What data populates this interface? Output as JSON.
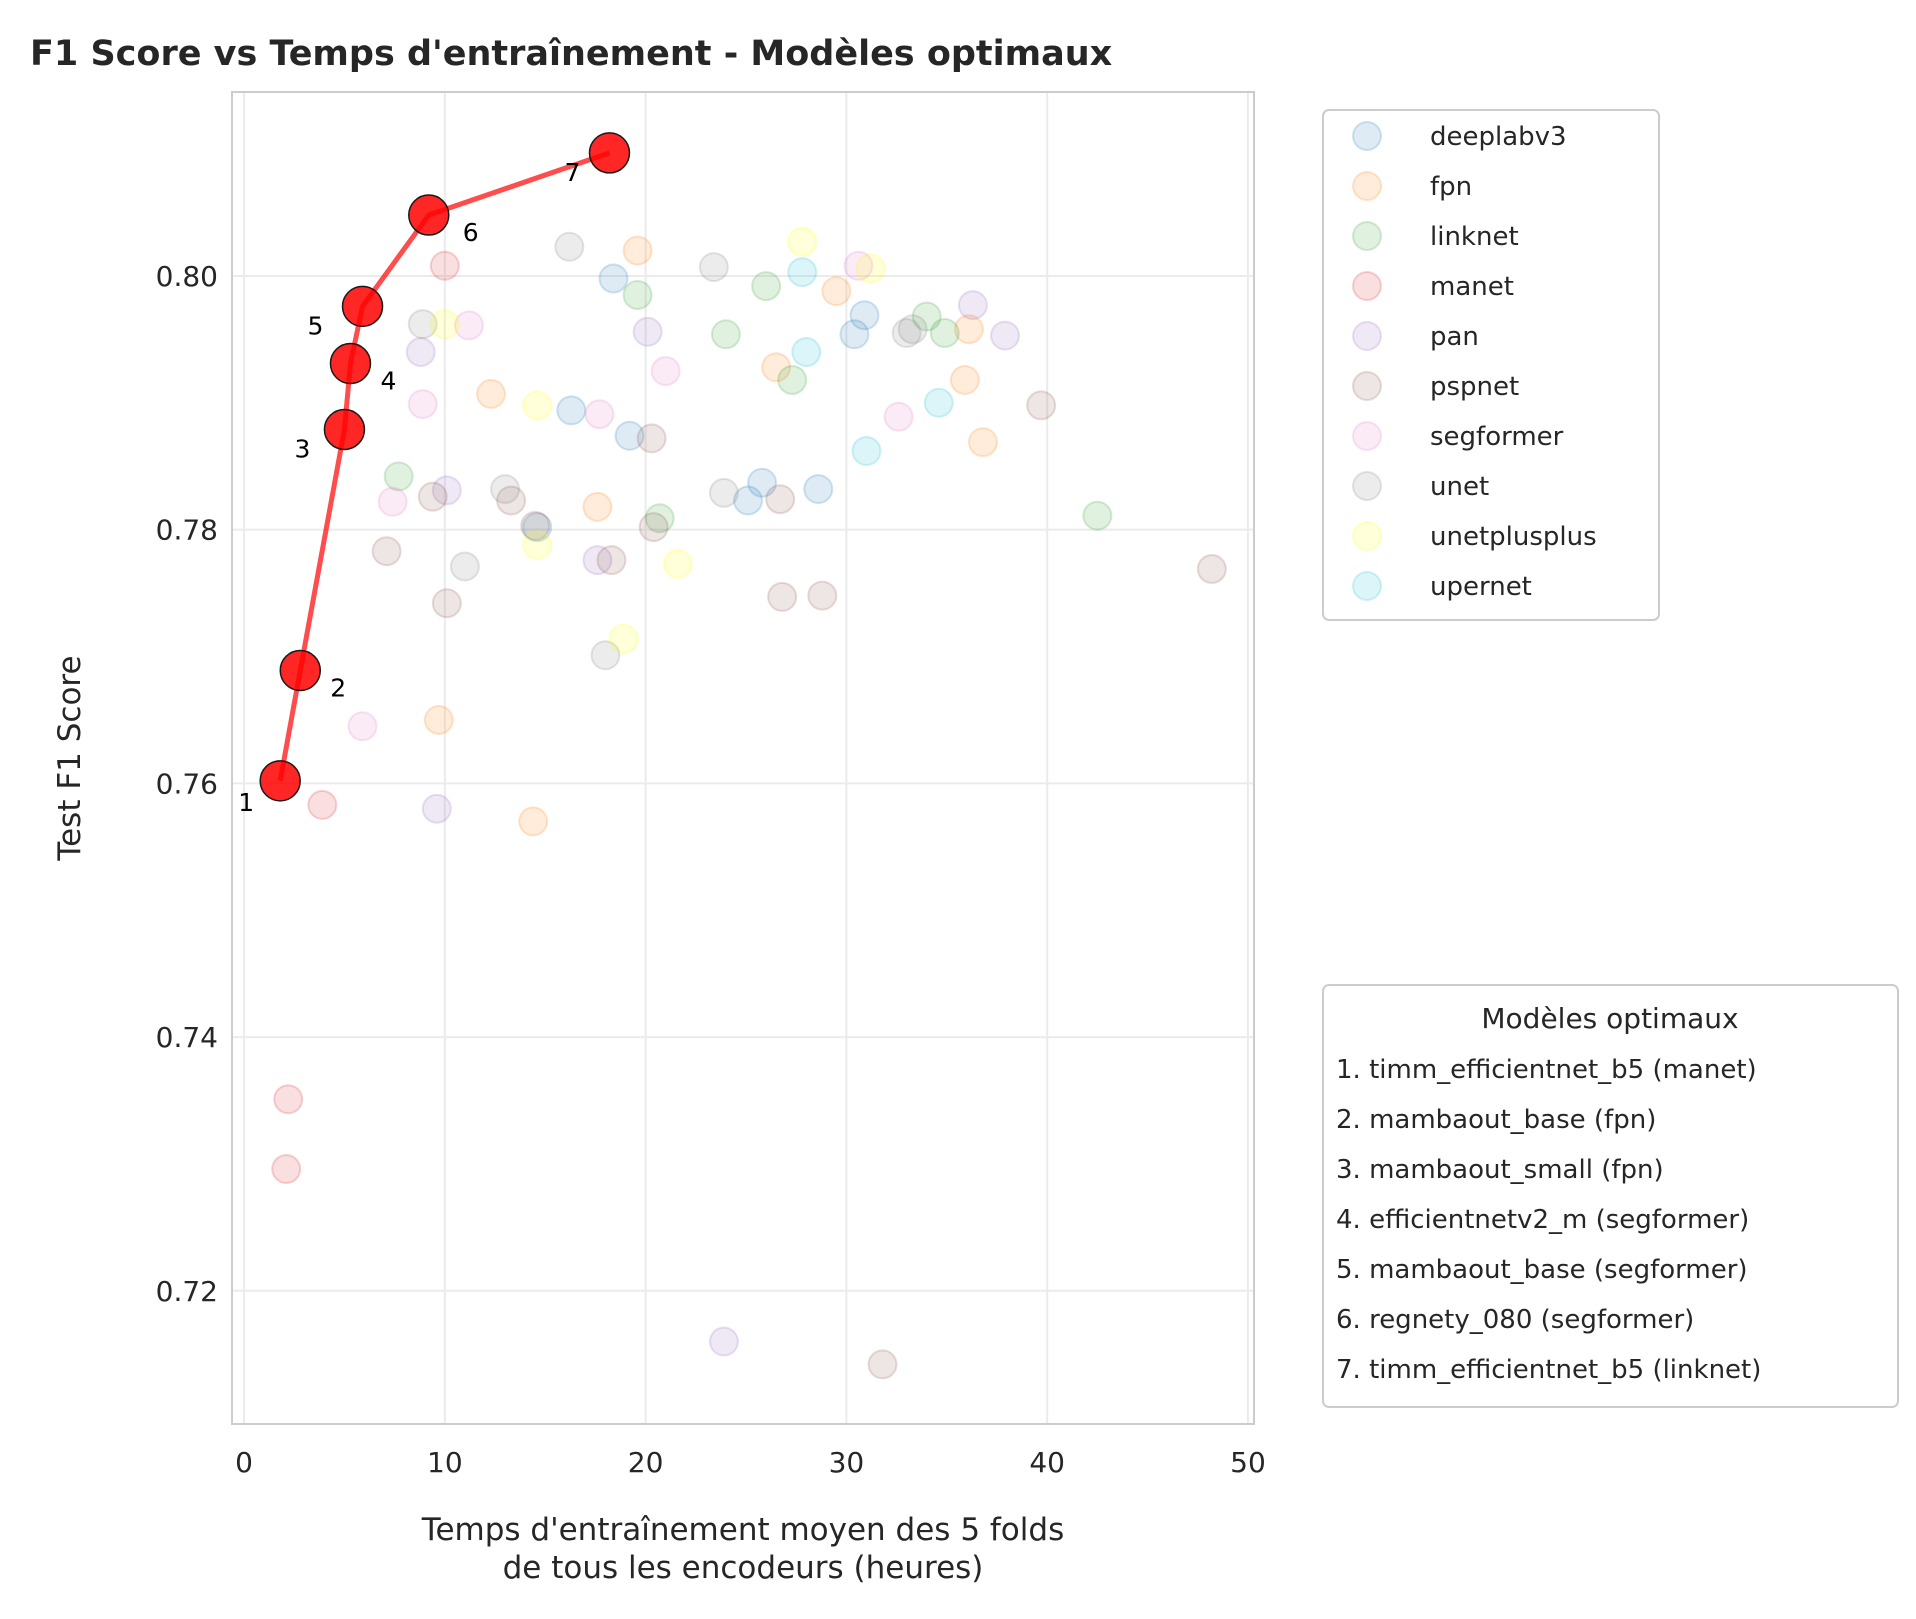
{
  "chart_data": {
    "type": "scatter",
    "title": "F1 Score vs Temps d'entraînement - Modèles optimaux",
    "xlabel_lines": [
      "Temps d'entraînement moyen des 5 folds",
      "de tous les encodeurs (heures)"
    ],
    "ylabel": "Test F1 Score",
    "xlim": [
      -0.6,
      50.3
    ],
    "ylim": [
      0.7095,
      0.8145
    ],
    "xticks": [
      0,
      10,
      20,
      30,
      40,
      50
    ],
    "yticks": [
      0.72,
      0.74,
      0.76,
      0.78,
      0.8
    ],
    "ytick_labels": [
      "0.72",
      "0.74",
      "0.76",
      "0.78",
      "0.80"
    ],
    "grid": true,
    "legend_position": "outside-right-top",
    "series": [
      {
        "name": "deeplabv3",
        "color": "#1f77b4",
        "points": [
          [
            16.3,
            0.7894
          ],
          [
            18.4,
            0.7998
          ],
          [
            19.2,
            0.7874
          ],
          [
            25.1,
            0.7823
          ],
          [
            25.8,
            0.7837
          ],
          [
            28.6,
            0.7832
          ],
          [
            30.4,
            0.7954
          ],
          [
            30.9,
            0.7969
          ],
          [
            14.6,
            0.7802
          ]
        ]
      },
      {
        "name": "fpn",
        "color": "#ff7f0e",
        "points": [
          [
            9.7,
            0.765
          ],
          [
            12.3,
            0.7907
          ],
          [
            14.4,
            0.757
          ],
          [
            17.6,
            0.7818
          ],
          [
            19.6,
            0.802
          ],
          [
            26.5,
            0.7928
          ],
          [
            29.5,
            0.7988
          ],
          [
            35.9,
            0.7918
          ],
          [
            36.1,
            0.7958
          ],
          [
            36.8,
            0.7869
          ]
        ]
      },
      {
        "name": "linknet",
        "color": "#2ca02c",
        "points": [
          [
            7.7,
            0.7842
          ],
          [
            19.6,
            0.7985
          ],
          [
            20.7,
            0.7809
          ],
          [
            24.0,
            0.7954
          ],
          [
            26.0,
            0.7992
          ],
          [
            27.3,
            0.7918
          ],
          [
            34.0,
            0.7968
          ],
          [
            34.9,
            0.7955
          ],
          [
            42.5,
            0.7811
          ]
        ]
      },
      {
        "name": "manet",
        "color": "#d62728",
        "points": [
          [
            3.9,
            0.7583
          ],
          [
            2.2,
            0.7351
          ],
          [
            2.1,
            0.7296
          ],
          [
            10.0,
            0.8008
          ]
        ]
      },
      {
        "name": "pan",
        "color": "#9467bd",
        "points": [
          [
            8.8,
            0.794
          ],
          [
            9.6,
            0.758
          ],
          [
            10.1,
            0.7831
          ],
          [
            17.6,
            0.7776
          ],
          [
            20.1,
            0.7956
          ],
          [
            23.9,
            0.716
          ],
          [
            36.3,
            0.7977
          ],
          [
            37.9,
            0.7953
          ]
        ]
      },
      {
        "name": "pspnet",
        "color": "#8c564b",
        "points": [
          [
            7.1,
            0.7783
          ],
          [
            9.4,
            0.7826
          ],
          [
            10.1,
            0.7742
          ],
          [
            13.3,
            0.7823
          ],
          [
            14.5,
            0.7803
          ],
          [
            18.3,
            0.7776
          ],
          [
            20.3,
            0.7872
          ],
          [
            20.4,
            0.7802
          ],
          [
            26.8,
            0.7747
          ],
          [
            26.7,
            0.7824
          ],
          [
            28.8,
            0.7748
          ],
          [
            31.8,
            0.7142
          ],
          [
            39.7,
            0.7898
          ],
          [
            48.2,
            0.7769
          ]
        ]
      },
      {
        "name": "segformer",
        "color": "#e377c2",
        "points": [
          [
            5.9,
            0.7645
          ],
          [
            7.4,
            0.7822
          ],
          [
            8.9,
            0.7899
          ],
          [
            11.2,
            0.7961
          ],
          [
            17.7,
            0.7891
          ],
          [
            21.0,
            0.7925
          ],
          [
            30.6,
            0.8008
          ],
          [
            32.6,
            0.7889
          ]
        ]
      },
      {
        "name": "unet",
        "color": "#7f7f7f",
        "points": [
          [
            8.9,
            0.7962
          ],
          [
            11.0,
            0.7771
          ],
          [
            13.0,
            0.7832
          ],
          [
            16.2,
            0.8023
          ],
          [
            18.0,
            0.7701
          ],
          [
            23.4,
            0.8007
          ],
          [
            23.9,
            0.7829
          ],
          [
            33.0,
            0.7955
          ],
          [
            33.3,
            0.7958
          ]
        ]
      },
      {
        "name": "unetplusplus",
        "color": "#ffff00",
        "points": [
          [
            10.0,
            0.7962
          ],
          [
            14.6,
            0.7898
          ],
          [
            14.6,
            0.7788
          ],
          [
            18.9,
            0.7714
          ],
          [
            21.6,
            0.7773
          ],
          [
            27.8,
            0.8027
          ],
          [
            31.2,
            0.8006
          ]
        ]
      },
      {
        "name": "upernet",
        "color": "#17becf",
        "points": [
          [
            27.8,
            0.8003
          ],
          [
            28.0,
            0.794
          ],
          [
            31.0,
            0.7862
          ],
          [
            34.6,
            0.79
          ]
        ]
      }
    ],
    "optimal": {
      "color": "#ff0000",
      "points": [
        {
          "rank": "1",
          "x": 1.8,
          "y": 0.7602,
          "label": "1. timm_efficientnet_b5 (manet)"
        },
        {
          "rank": "2",
          "x": 2.8,
          "y": 0.7689,
          "label": "2. mambaout_base (fpn)"
        },
        {
          "rank": "3",
          "x": 5.0,
          "y": 0.7879,
          "label": "3. mambaout_small (fpn)"
        },
        {
          "rank": "4",
          "x": 5.3,
          "y": 0.7931,
          "label": "4. efficientnetv2_m (segformer)"
        },
        {
          "rank": "5",
          "x": 5.9,
          "y": 0.7976,
          "label": "5. mambaout_base (segformer)"
        },
        {
          "rank": "6",
          "x": 9.2,
          "y": 0.8048,
          "label": "6. regnety_080 (segformer)"
        },
        {
          "rank": "7",
          "x": 18.2,
          "y": 0.8097,
          "label": "7. timm_efficientnet_b5 (linknet)"
        }
      ]
    },
    "optimal_legend_title": "Modèles optimaux"
  }
}
